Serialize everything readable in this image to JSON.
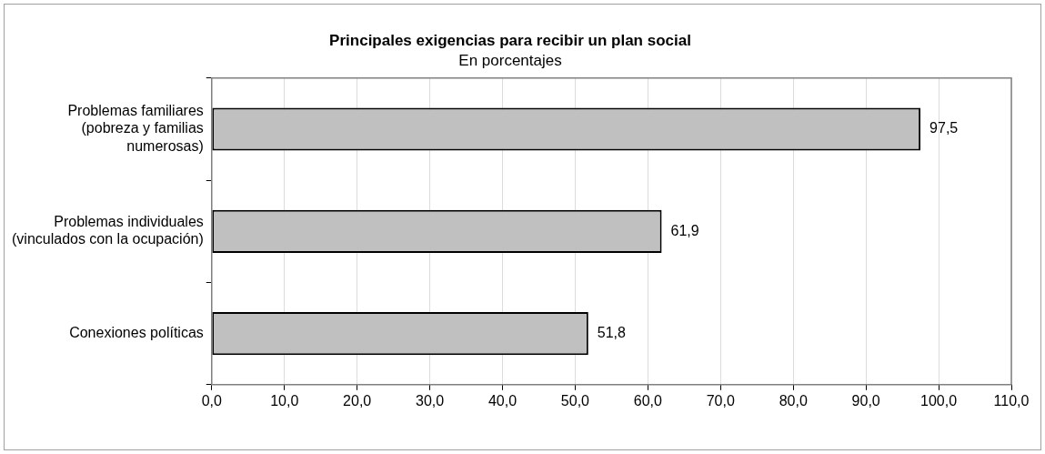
{
  "chart_data": {
    "type": "bar",
    "orientation": "horizontal",
    "title": "Principales exigencias para recibir un plan social",
    "subtitle": "En porcentajes",
    "categories": [
      "Problemas familiares (pobreza y familias numerosas)",
      "Problemas individuales (vinculados con la ocupación)",
      "Conexiones políticas"
    ],
    "values": [
      97.5,
      61.9,
      51.8
    ],
    "value_labels": [
      "97,5",
      "61,9",
      "51,8"
    ],
    "color": "#c0c0c0",
    "xlim": [
      0,
      110
    ],
    "xticks": [
      {
        "value": 0,
        "label": "0,0"
      },
      {
        "value": 10,
        "label": "10,0"
      },
      {
        "value": 20,
        "label": "20,0"
      },
      {
        "value": 30,
        "label": "30,0"
      },
      {
        "value": 40,
        "label": "40,0"
      },
      {
        "value": 50,
        "label": "50,0"
      },
      {
        "value": 60,
        "label": "60,0"
      },
      {
        "value": 70,
        "label": "70,0"
      },
      {
        "value": 80,
        "label": "80,0"
      },
      {
        "value": 90,
        "label": "90,0"
      },
      {
        "value": 100,
        "label": "100,0"
      },
      {
        "value": 110,
        "label": "110,0"
      }
    ],
    "grid": "x",
    "legend": false
  }
}
